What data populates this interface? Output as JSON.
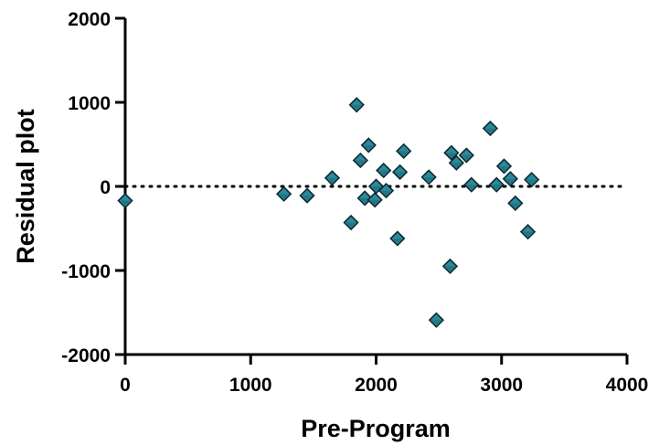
{
  "chart_data": {
    "type": "scatter",
    "title": "",
    "xlabel": "Pre-Program",
    "ylabel": "Residual plot",
    "xlim": [
      0,
      4000
    ],
    "ylim": [
      -2000,
      2000
    ],
    "xticks": [
      0,
      1000,
      2000,
      3000,
      4000
    ],
    "yticks": [
      -2000,
      -1000,
      0,
      1000,
      2000
    ],
    "xtick_labels": [
      "0",
      "1000",
      "2000",
      "3000",
      "4000"
    ],
    "ytick_labels": [
      "-2000",
      "-1000",
      "0",
      "1000",
      "2000"
    ],
    "grid": false,
    "legend": "none",
    "reference_line": {
      "y": 0,
      "style": "dotted"
    },
    "marker": {
      "shape": "diamond",
      "fill": "#2a8a9a",
      "stroke": "#0d2a33"
    },
    "points": [
      {
        "x": 0,
        "y": -170
      },
      {
        "x": 1265,
        "y": -90
      },
      {
        "x": 1450,
        "y": -110
      },
      {
        "x": 1650,
        "y": 100
      },
      {
        "x": 1800,
        "y": -430
      },
      {
        "x": 1845,
        "y": 970
      },
      {
        "x": 1875,
        "y": 310
      },
      {
        "x": 1910,
        "y": -140
      },
      {
        "x": 1940,
        "y": 490
      },
      {
        "x": 1990,
        "y": -160
      },
      {
        "x": 2000,
        "y": 0
      },
      {
        "x": 2060,
        "y": 190
      },
      {
        "x": 2080,
        "y": -50
      },
      {
        "x": 2170,
        "y": -620
      },
      {
        "x": 2190,
        "y": 170
      },
      {
        "x": 2220,
        "y": 420
      },
      {
        "x": 2420,
        "y": 110
      },
      {
        "x": 2480,
        "y": -1590
      },
      {
        "x": 2590,
        "y": -950
      },
      {
        "x": 2600,
        "y": 400
      },
      {
        "x": 2640,
        "y": 280
      },
      {
        "x": 2720,
        "y": 370
      },
      {
        "x": 2760,
        "y": 20
      },
      {
        "x": 2910,
        "y": 690
      },
      {
        "x": 2960,
        "y": 20
      },
      {
        "x": 3020,
        "y": 240
      },
      {
        "x": 3070,
        "y": 90
      },
      {
        "x": 3110,
        "y": -200
      },
      {
        "x": 3210,
        "y": -540
      },
      {
        "x": 3240,
        "y": 80
      }
    ]
  }
}
